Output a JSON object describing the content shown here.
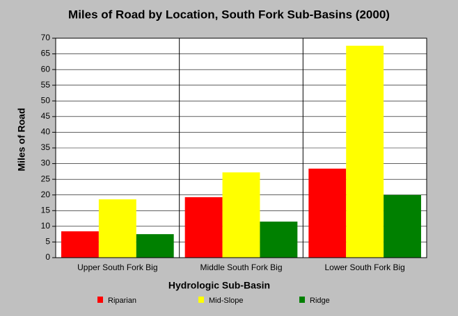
{
  "chart_data": {
    "type": "bar",
    "title": "Miles of Road by Location, South Fork Sub-Basins (2000)",
    "x_label": "Hydrologic Sub-Basin",
    "y_label": "Miles of Road",
    "categories": [
      "Upper South Fork Big",
      "Middle South Fork Big",
      "Lower South Fork Big"
    ],
    "series": [
      {
        "name": "Riparian",
        "color": "#ff0000",
        "values": [
          8.4,
          19.3,
          28.4
        ]
      },
      {
        "name": "Mid-Slope",
        "color": "#ffff00",
        "values": [
          18.6,
          27.2,
          67.6
        ]
      },
      {
        "name": "Ridge",
        "color": "#008000",
        "values": [
          7.5,
          11.5,
          20.0
        ]
      }
    ],
    "ylim": [
      0,
      70
    ],
    "yticks": [
      0,
      5,
      10,
      15,
      20,
      25,
      30,
      35,
      40,
      45,
      50,
      55,
      60,
      65,
      70
    ],
    "grid": true
  }
}
